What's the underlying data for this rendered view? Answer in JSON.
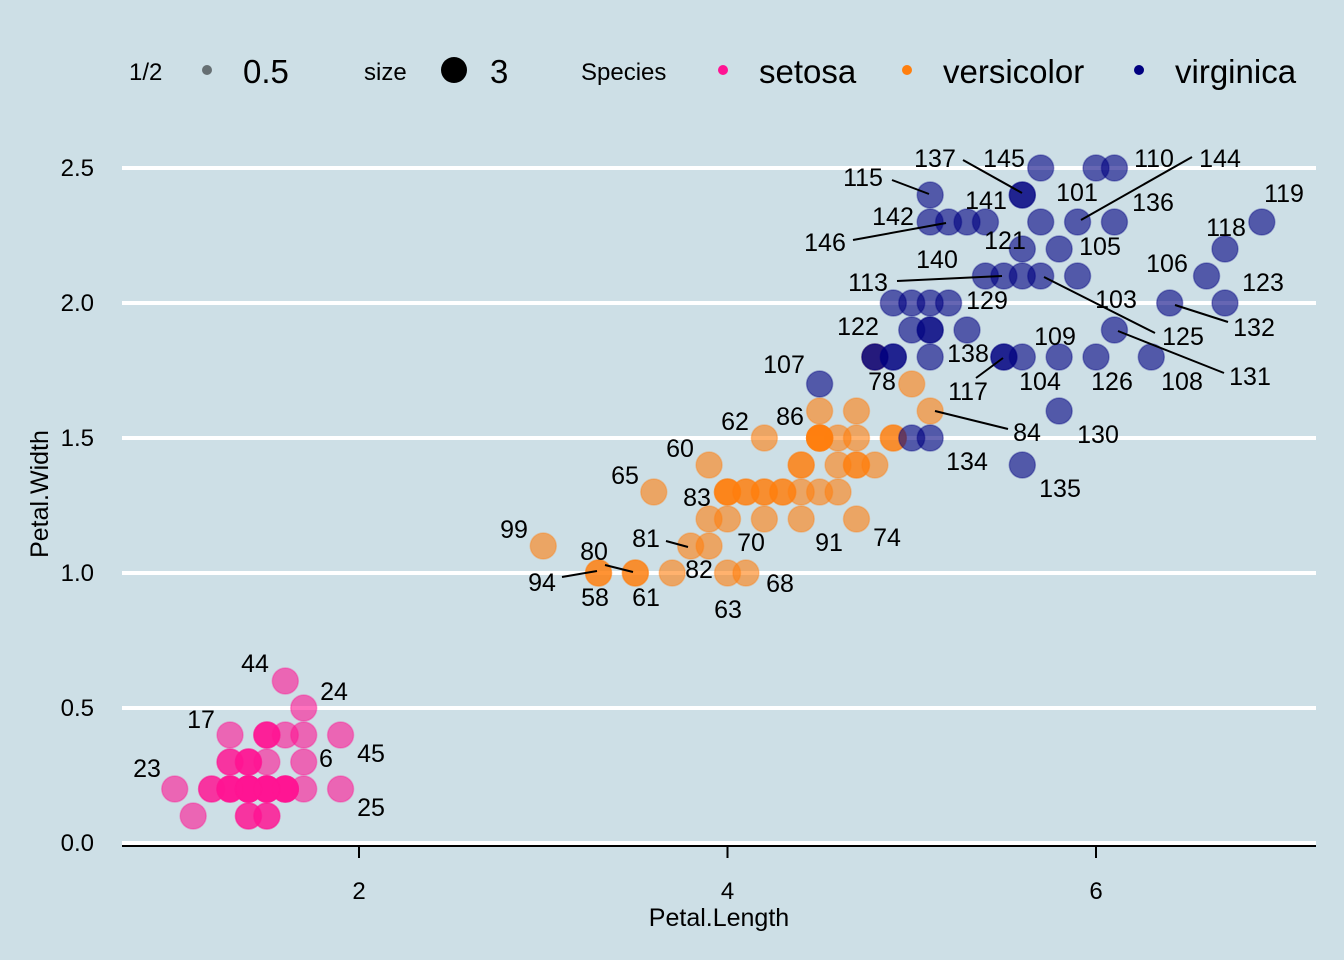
{
  "chart_data": {
    "type": "scatter",
    "xlabel": "Petal.Length",
    "ylabel": "Petal.Width",
    "xlim": [
      0.75,
      7.15
    ],
    "ylim": [
      0,
      2.5
    ],
    "x_ticks": [
      2,
      4,
      6
    ],
    "y_ticks": [
      "0.0",
      "0.5",
      "1.0",
      "1.5",
      "2.0",
      "2.5"
    ],
    "grid": "horizontal",
    "legend": {
      "placement": "top",
      "alpha_title": "1/2",
      "alpha_value": "0.5",
      "size_title": "size",
      "size_value": "3",
      "color_title": "Species",
      "entries": [
        "setosa",
        "versicolor",
        "virginica"
      ]
    },
    "colors": {
      "setosa": "#ff1493",
      "versicolor": "#ff7f0e",
      "virginica": "#000080"
    },
    "point_alpha": 0.6,
    "species_ranges": {
      "setosa": [
        1,
        50
      ],
      "versicolor": [
        51,
        100
      ],
      "virginica": [
        101,
        150
      ]
    },
    "petal_length": [
      1.4,
      1.4,
      1.3,
      1.5,
      1.4,
      1.7,
      1.4,
      1.5,
      1.4,
      1.5,
      1.5,
      1.6,
      1.4,
      1.1,
      1.2,
      1.5,
      1.3,
      1.4,
      1.7,
      1.5,
      1.7,
      1.5,
      1.0,
      1.7,
      1.9,
      1.6,
      1.6,
      1.5,
      1.4,
      1.6,
      1.6,
      1.5,
      1.5,
      1.4,
      1.5,
      1.2,
      1.3,
      1.4,
      1.3,
      1.5,
      1.3,
      1.3,
      1.3,
      1.6,
      1.9,
      1.4,
      1.6,
      1.4,
      1.5,
      1.4,
      4.7,
      4.5,
      4.9,
      4.0,
      4.6,
      4.5,
      4.7,
      3.3,
      4.6,
      3.9,
      3.5,
      4.2,
      4.0,
      4.7,
      3.6,
      4.4,
      4.5,
      4.1,
      4.5,
      3.9,
      4.8,
      4.0,
      4.9,
      4.7,
      4.3,
      4.4,
      4.8,
      5.0,
      4.5,
      3.5,
      3.8,
      3.7,
      3.9,
      5.1,
      4.5,
      4.5,
      4.7,
      4.4,
      4.1,
      4.0,
      4.4,
      4.6,
      4.0,
      3.3,
      4.2,
      4.2,
      4.2,
      4.3,
      3.0,
      4.1,
      6.0,
      5.1,
      5.9,
      5.6,
      5.8,
      6.6,
      4.5,
      6.3,
      5.8,
      6.1,
      5.1,
      5.3,
      5.5,
      5.0,
      5.1,
      5.3,
      5.5,
      6.7,
      6.9,
      5.0,
      5.7,
      4.9,
      6.7,
      4.9,
      5.7,
      6.0,
      4.8,
      4.9,
      5.6,
      5.8,
      6.1,
      6.4,
      5.6,
      5.1,
      5.6,
      6.1,
      5.6,
      5.5,
      4.8,
      5.4,
      5.6,
      5.1,
      5.1,
      5.9,
      5.7,
      5.2,
      5.0,
      5.2,
      5.4,
      5.1
    ],
    "petal_width": [
      0.2,
      0.2,
      0.2,
      0.2,
      0.2,
      0.4,
      0.3,
      0.2,
      0.2,
      0.1,
      0.2,
      0.2,
      0.1,
      0.1,
      0.2,
      0.4,
      0.4,
      0.3,
      0.3,
      0.3,
      0.2,
      0.4,
      0.2,
      0.5,
      0.2,
      0.2,
      0.4,
      0.2,
      0.2,
      0.2,
      0.2,
      0.4,
      0.1,
      0.2,
      0.2,
      0.2,
      0.2,
      0.1,
      0.2,
      0.2,
      0.3,
      0.3,
      0.2,
      0.6,
      0.4,
      0.3,
      0.2,
      0.2,
      0.2,
      0.2,
      1.4,
      1.5,
      1.5,
      1.3,
      1.5,
      1.3,
      1.6,
      1.0,
      1.3,
      1.4,
      1.0,
      1.5,
      1.0,
      1.4,
      1.3,
      1.4,
      1.5,
      1.0,
      1.5,
      1.1,
      1.8,
      1.3,
      1.5,
      1.2,
      1.3,
      1.4,
      1.4,
      1.7,
      1.5,
      1.0,
      1.1,
      1.0,
      1.2,
      1.6,
      1.5,
      1.6,
      1.5,
      1.3,
      1.3,
      1.3,
      1.2,
      1.4,
      1.2,
      1.0,
      1.3,
      1.2,
      1.3,
      1.3,
      1.1,
      1.3,
      2.5,
      1.9,
      2.1,
      1.8,
      2.2,
      2.1,
      1.7,
      1.8,
      1.8,
      2.5,
      2.0,
      1.9,
      2.1,
      2.0,
      2.4,
      2.3,
      1.8,
      2.2,
      2.3,
      1.5,
      2.3,
      2.0,
      2.0,
      1.8,
      2.1,
      1.8,
      1.8,
      1.8,
      2.1,
      1.6,
      1.9,
      2.0,
      2.2,
      1.5,
      1.4,
      2.3,
      2.4,
      1.8,
      1.8,
      2.1,
      2.4,
      2.3,
      1.9,
      2.3,
      2.5,
      2.3,
      1.9,
      2.0,
      2.3,
      1.8
    ],
    "labeled_points": [
      "44",
      "24",
      "17",
      "23",
      "6",
      "45",
      "25",
      "99",
      "80",
      "94",
      "58",
      "61",
      "81",
      "82",
      "70",
      "63",
      "68",
      "65",
      "60",
      "83",
      "62",
      "86",
      "91",
      "74",
      "107",
      "78",
      "84",
      "122",
      "134",
      "138",
      "117",
      "104",
      "109",
      "126",
      "108",
      "131",
      "130",
      "135",
      "113",
      "140",
      "129",
      "103",
      "125",
      "132",
      "123",
      "106",
      "118",
      "119",
      "144",
      "136",
      "110",
      "101",
      "105",
      "121",
      "141",
      "145",
      "137",
      "115",
      "142",
      "146"
    ]
  }
}
